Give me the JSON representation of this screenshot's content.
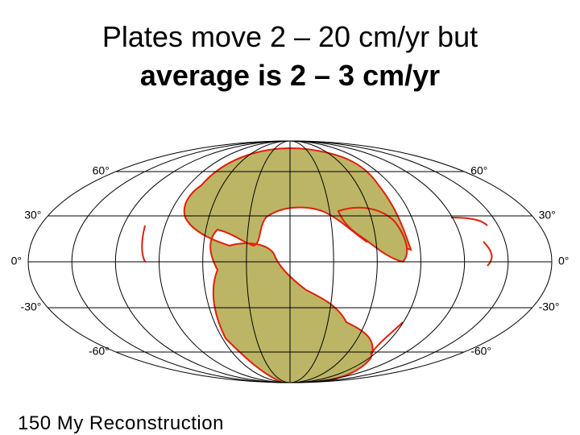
{
  "title": {
    "line1": "Plates move 2 – 20 cm/yr but",
    "line2": "average is 2 – 3 cm/yr"
  },
  "map": {
    "latitude_labels_left": [
      "60°",
      "30°",
      "0°",
      "-30°",
      "-60°"
    ],
    "latitude_labels_right": [
      "60°",
      "30°",
      "0°",
      "-30°",
      "-60°"
    ]
  },
  "caption": "150 My Reconstruction"
}
